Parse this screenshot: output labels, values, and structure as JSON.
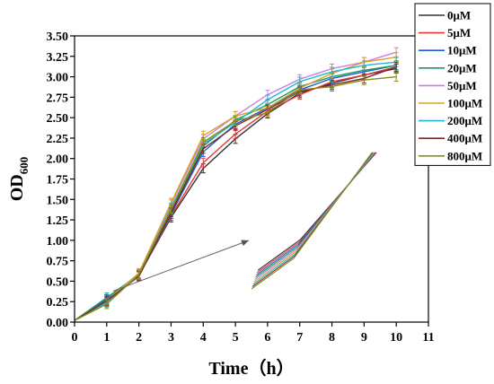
{
  "chart_data": {
    "type": "line",
    "xlabel": "Time（h）",
    "ylabel": "OD",
    "ylabel_subscript": "600",
    "xlim": [
      0,
      11
    ],
    "ylim": [
      0.0,
      3.5
    ],
    "x_ticks": [
      "0",
      "1",
      "2",
      "3",
      "4",
      "5",
      "6",
      "7",
      "8",
      "9",
      "10",
      "11"
    ],
    "y_ticks": [
      "0.00",
      "0.25",
      "0.50",
      "0.75",
      "1.00",
      "1.25",
      "1.50",
      "1.75",
      "2.00",
      "2.25",
      "2.50",
      "2.75",
      "3.00",
      "3.25",
      "3.50"
    ],
    "x": [
      0,
      1,
      2,
      3,
      4,
      5,
      6,
      7,
      8,
      9,
      10
    ],
    "legend_position": "top-right",
    "series": [
      {
        "name": "0μM",
        "color": "#333333",
        "values": [
          0.02,
          0.25,
          0.57,
          1.28,
          1.88,
          2.24,
          2.55,
          2.8,
          2.92,
          3.02,
          3.1
        ]
      },
      {
        "name": "5μM",
        "color": "#e23a3a",
        "values": [
          0.02,
          0.27,
          0.57,
          1.3,
          1.95,
          2.3,
          2.58,
          2.78,
          2.94,
          3.02,
          3.12
        ]
      },
      {
        "name": "10μM",
        "color": "#1f5bd6",
        "values": [
          0.02,
          0.28,
          0.56,
          1.32,
          2.08,
          2.42,
          2.62,
          2.84,
          2.98,
          3.06,
          3.14
        ]
      },
      {
        "name": "20μM",
        "color": "#1a9e5e",
        "values": [
          0.02,
          0.3,
          0.58,
          1.36,
          2.15,
          2.47,
          2.66,
          2.88,
          3.0,
          3.08,
          3.14
        ]
      },
      {
        "name": "50μM",
        "color": "#c77fe0",
        "values": [
          0.02,
          0.24,
          0.59,
          1.44,
          2.24,
          2.52,
          2.78,
          2.97,
          3.1,
          3.18,
          3.3
        ]
      },
      {
        "name": "100μM",
        "color": "#e0a020",
        "values": [
          0.02,
          0.26,
          0.6,
          1.46,
          2.28,
          2.52,
          2.62,
          2.86,
          3.04,
          3.18,
          3.24
        ]
      },
      {
        "name": "200μM",
        "color": "#20b8cc",
        "values": [
          0.02,
          0.24,
          0.58,
          1.4,
          2.18,
          2.44,
          2.72,
          2.94,
          3.06,
          3.14,
          3.18
        ]
      },
      {
        "name": "400μM",
        "color": "#7a2a2a",
        "values": [
          0.02,
          0.26,
          0.56,
          1.34,
          2.12,
          2.4,
          2.6,
          2.82,
          2.9,
          2.98,
          3.12
        ]
      },
      {
        "name": "800μM",
        "color": "#8b8b18",
        "values": [
          0.02,
          0.22,
          0.58,
          1.38,
          2.2,
          2.46,
          2.56,
          2.84,
          2.88,
          2.96,
          3.0
        ]
      }
    ],
    "annotation": "arrow from early-growth region to an inset showing a magnified view of the series lines"
  }
}
